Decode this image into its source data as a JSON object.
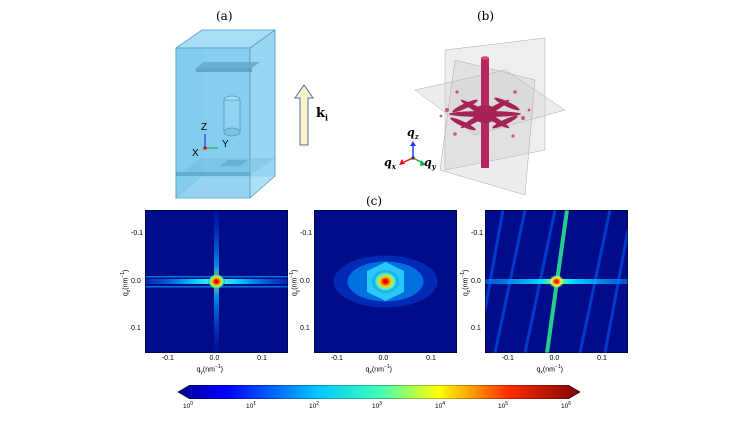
{
  "figure": {
    "panel_a": {
      "label": "(a)",
      "beam_label": "k",
      "beam_subscript": "i",
      "axes": {
        "x": "X",
        "y": "Y",
        "z": "Z"
      }
    },
    "panel_b": {
      "label": "(b)",
      "axes": {
        "x": "q",
        "x_sub": "x",
        "y": "q",
        "y_sub": "y",
        "z": "q",
        "z_sub": "z"
      }
    },
    "panel_c": {
      "label": "(c)",
      "maps": [
        {
          "ylabel": "q",
          "ylabel_sub": "z",
          "ylabel_unit": "(nm",
          "xlabel": "q",
          "xlabel_sub": "y",
          "xlabel_unit": "(nm"
        },
        {
          "ylabel": "q",
          "ylabel_sub": "y",
          "ylabel_unit": "(nm",
          "xlabel": "q",
          "xlabel_sub": "x",
          "xlabel_unit": "(nm"
        },
        {
          "ylabel": "q",
          "ylabel_sub": "z",
          "ylabel_unit": "(nm",
          "xlabel": "q",
          "xlabel_sub": "x",
          "xlabel_unit": "(nm"
        }
      ],
      "tick_labels_x": [
        "-0.1",
        "0.0",
        "0.1"
      ],
      "tick_labels_y": [
        "-0.1",
        "0.0",
        "0.1"
      ],
      "unit_exponent": "−1",
      "unit_close": ")"
    },
    "colorbar": {
      "base": "10",
      "exponents": [
        "0",
        "1",
        "2",
        "3",
        "4",
        "5",
        "6"
      ]
    }
  },
  "chart_data": {
    "type": "heatmap",
    "colorbar_scale": "log",
    "colorbar_range": [
      1,
      1000000
    ],
    "axis_range": [
      -0.15,
      0.15
    ]
  }
}
